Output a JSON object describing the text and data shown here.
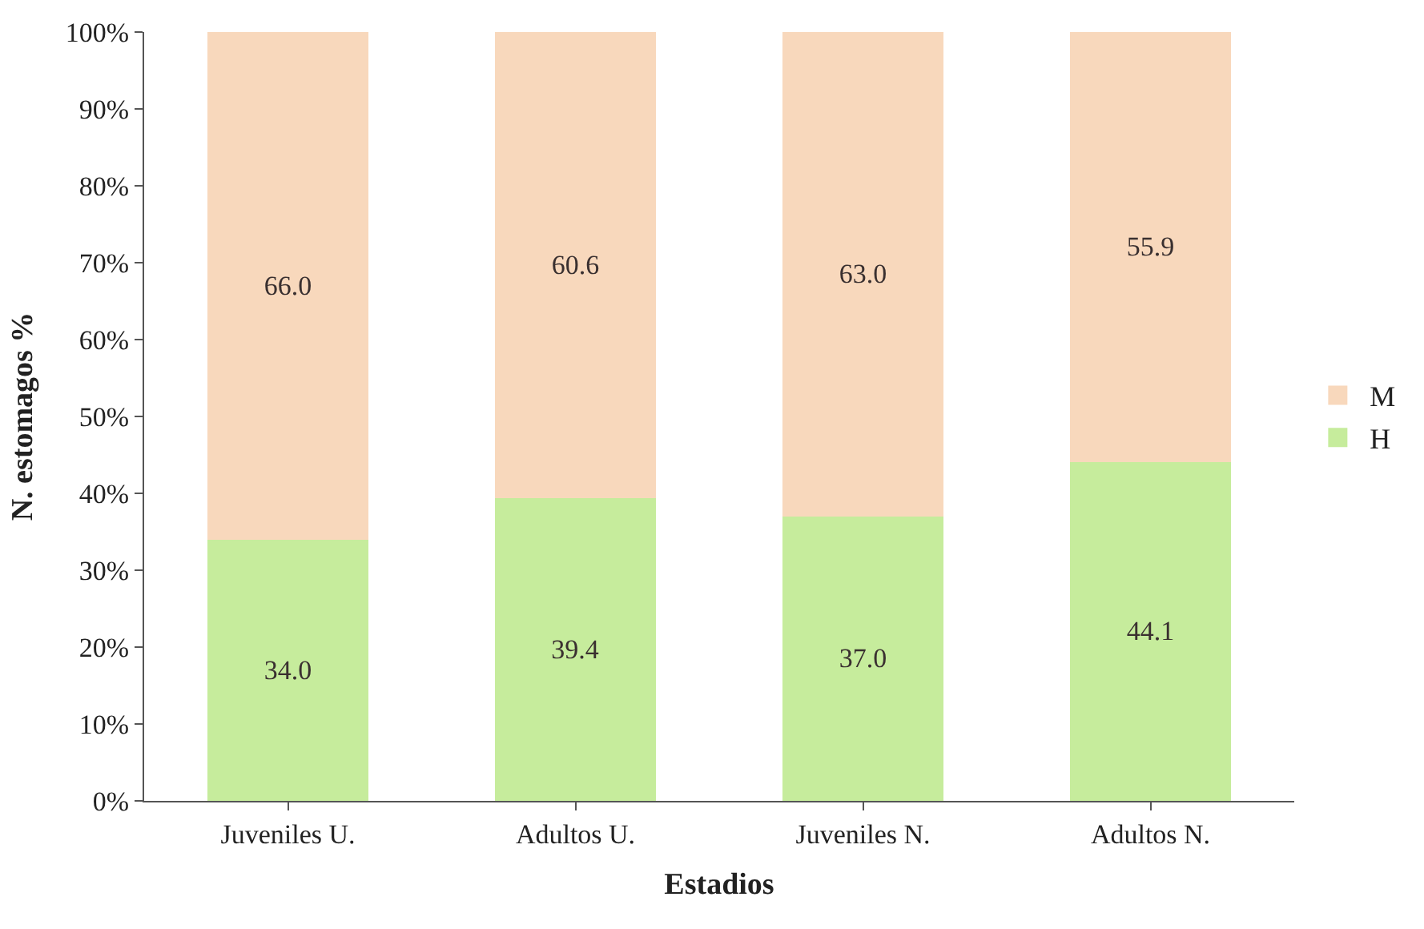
{
  "chart_data": {
    "type": "bar",
    "stacked": true,
    "xlabel": "Estadios",
    "ylabel": "N. estomagos %",
    "categories": [
      "Juveniles U.",
      "Adultos U.",
      "Juveniles N.",
      "Adultos N."
    ],
    "series": [
      {
        "name": "H",
        "color": "#c6ec9c",
        "values": [
          34.0,
          39.4,
          37.0,
          44.1
        ],
        "value_labels": [
          "34.0",
          "39.4",
          "37.0",
          "44.1"
        ]
      },
      {
        "name": "M",
        "color": "#f8d8bc",
        "values": [
          66.0,
          60.6,
          63.0,
          55.9
        ],
        "value_labels": [
          "66.0",
          "60.6",
          "63.0",
          "55.9"
        ]
      }
    ],
    "ylim": [
      0,
      100
    ],
    "yticks": [
      {
        "value": 0,
        "label": "0%"
      },
      {
        "value": 10,
        "label": "10%"
      },
      {
        "value": 20,
        "label": "20%"
      },
      {
        "value": 30,
        "label": "30%"
      },
      {
        "value": 40,
        "label": "40%"
      },
      {
        "value": 50,
        "label": "50%"
      },
      {
        "value": 60,
        "label": "60%"
      },
      {
        "value": 70,
        "label": "70%"
      },
      {
        "value": 80,
        "label": "80%"
      },
      {
        "value": 90,
        "label": "90%"
      },
      {
        "value": 100,
        "label": "100%"
      }
    ],
    "legend": "right"
  }
}
